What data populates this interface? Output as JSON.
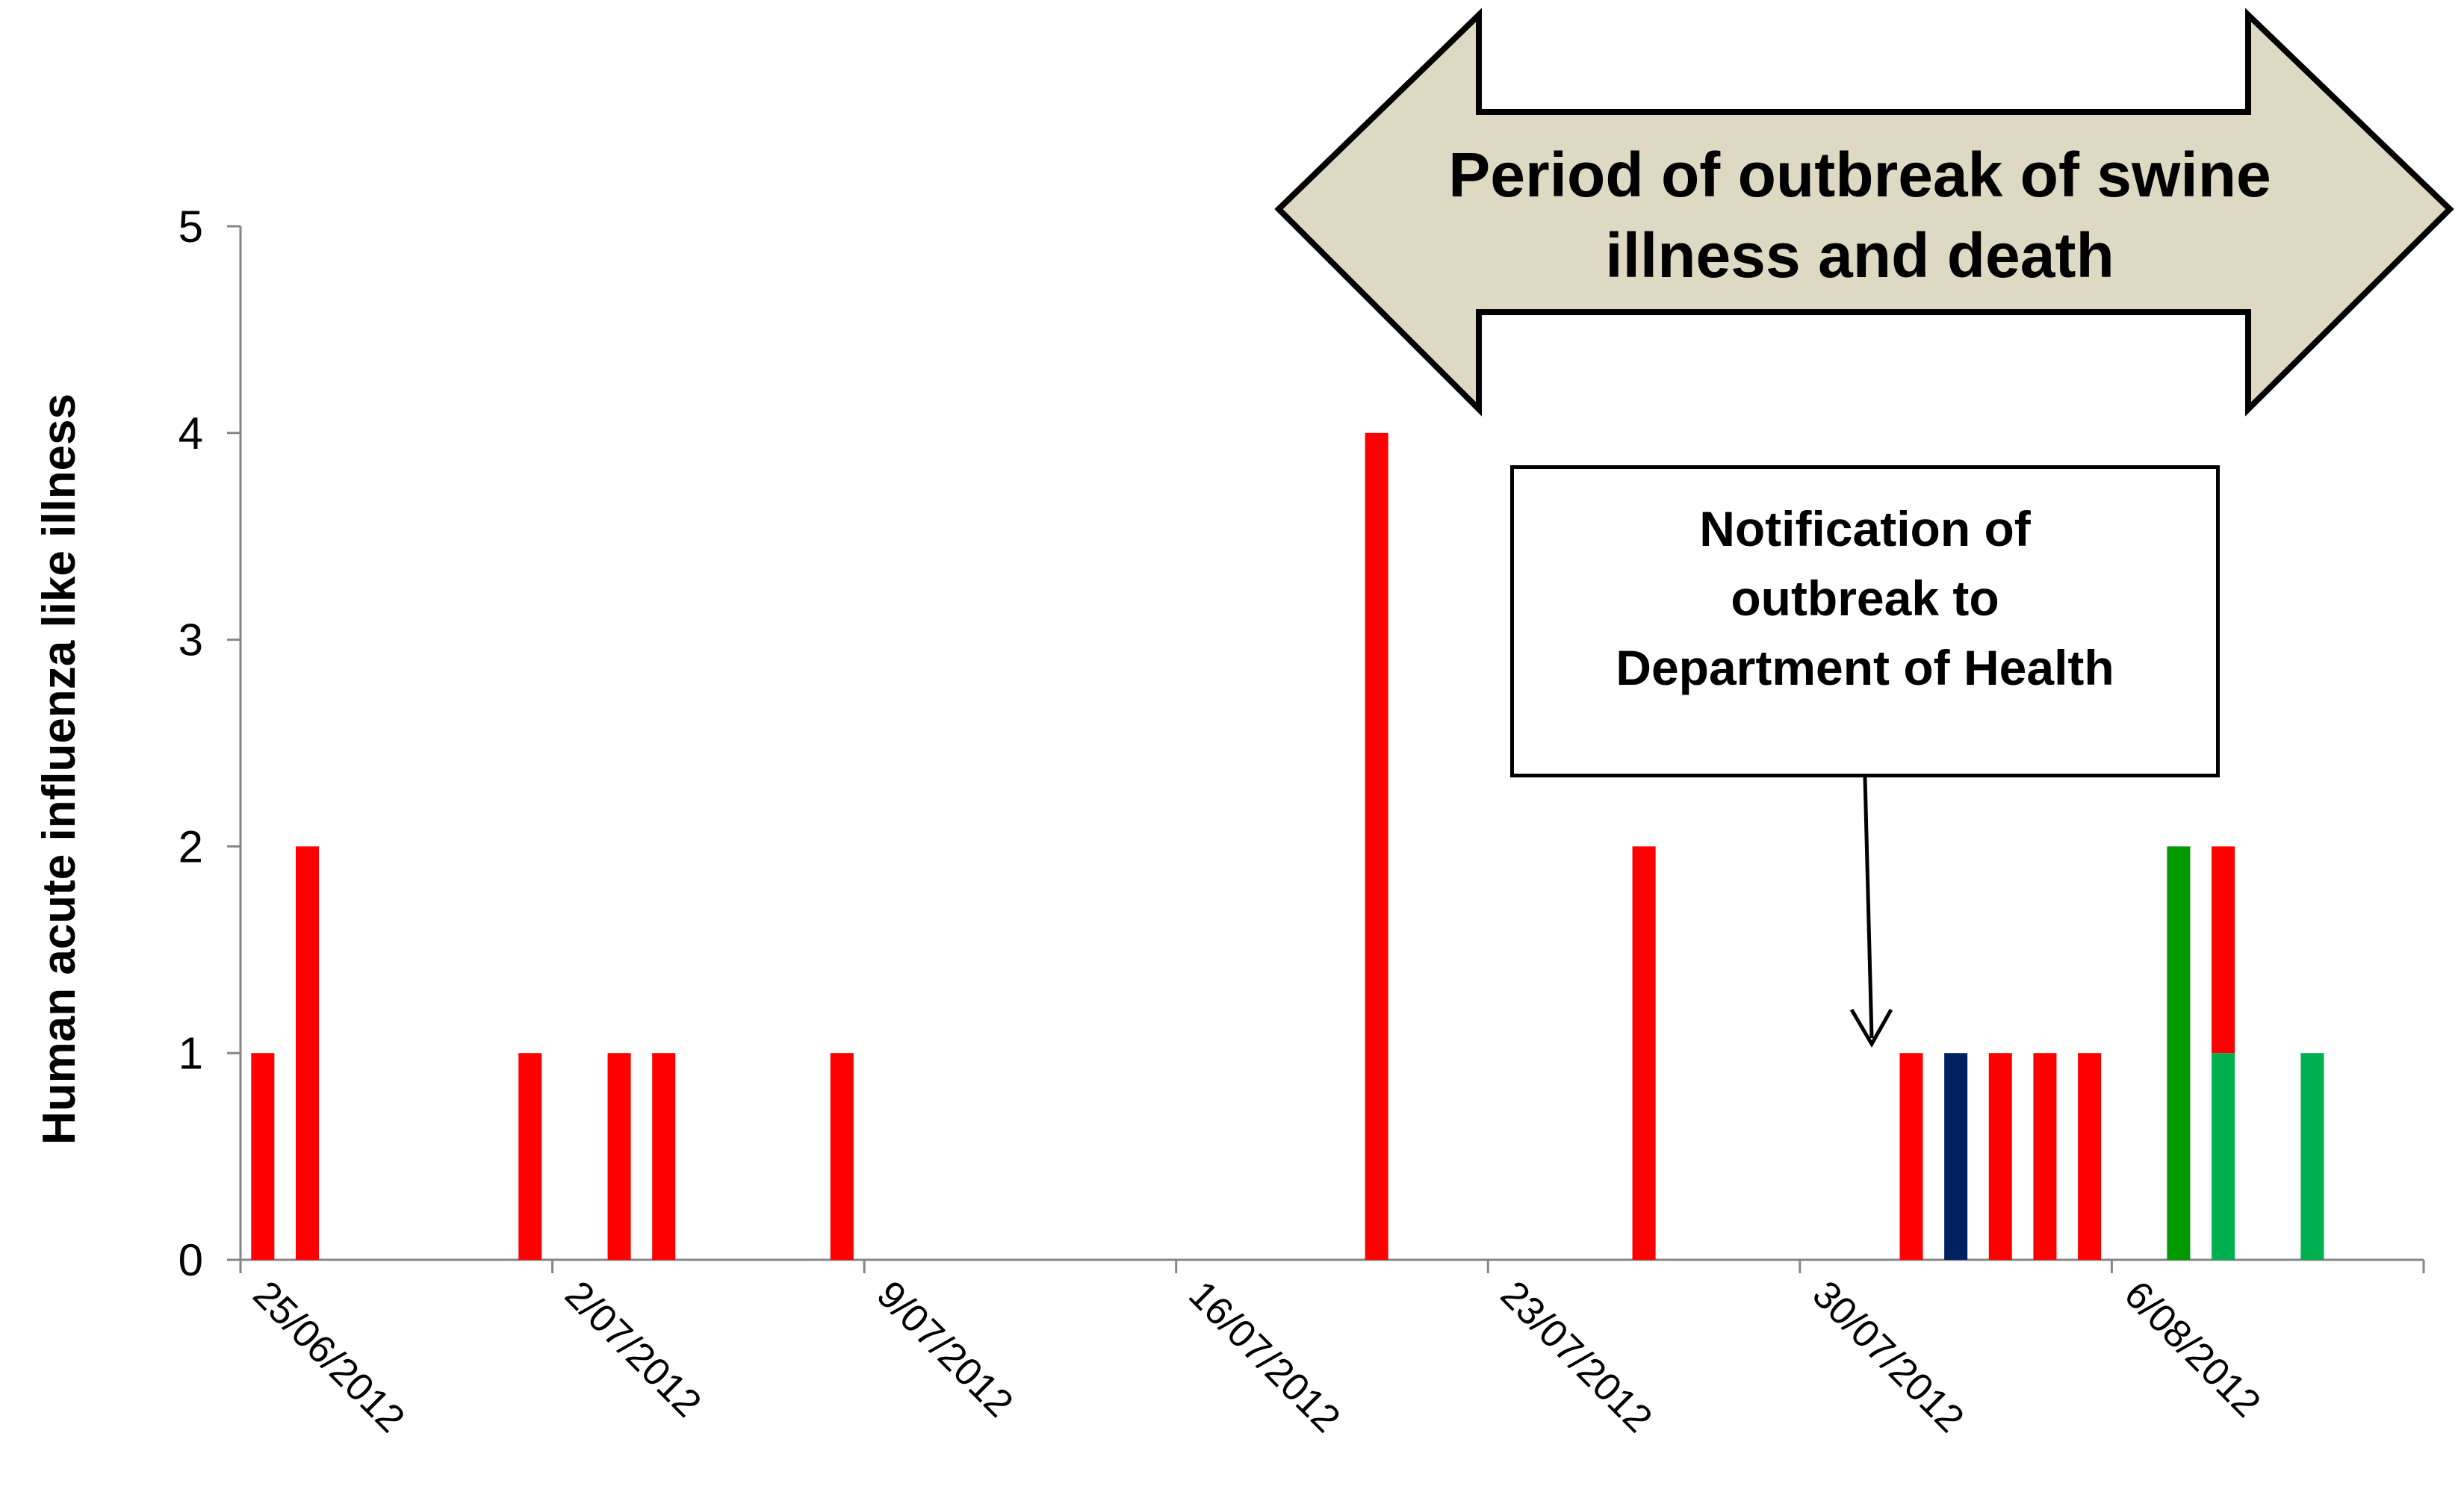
{
  "chart_data": {
    "type": "bar",
    "title": "",
    "xlabel": "",
    "ylabel": "Human acute influenza like  illness",
    "ylim": [
      0,
      5
    ],
    "y_ticks": [
      "0",
      "1",
      "2",
      "3",
      "4",
      "5"
    ],
    "x_tick_labels": [
      "25/06/2012",
      "2/07/2012",
      "9/07/2012",
      "16/07/2012",
      "23/07/2012",
      "30/07/2012",
      "6/08/2012"
    ],
    "x_start_date": "2012-06-25",
    "x_end_day": 49,
    "colors": {
      "red": "#ff0000",
      "navy": "#002060",
      "green": "#009900",
      "light_green": "#00b050"
    },
    "bars": [
      {
        "day": 0.5,
        "segments": [
          {
            "value": 1,
            "color": "red"
          }
        ]
      },
      {
        "day": 1.5,
        "segments": [
          {
            "value": 2,
            "color": "red"
          }
        ]
      },
      {
        "day": 6.5,
        "segments": [
          {
            "value": 1,
            "color": "red"
          }
        ]
      },
      {
        "day": 8.5,
        "segments": [
          {
            "value": 1,
            "color": "red"
          }
        ]
      },
      {
        "day": 9.5,
        "segments": [
          {
            "value": 1,
            "color": "red"
          }
        ]
      },
      {
        "day": 13.5,
        "segments": [
          {
            "value": 1,
            "color": "red"
          }
        ]
      },
      {
        "day": 25.5,
        "segments": [
          {
            "value": 4,
            "color": "red"
          }
        ]
      },
      {
        "day": 31.5,
        "segments": [
          {
            "value": 2,
            "color": "red"
          }
        ]
      },
      {
        "day": 37.5,
        "segments": [
          {
            "value": 1,
            "color": "red"
          }
        ]
      },
      {
        "day": 38.5,
        "segments": [
          {
            "value": 1,
            "color": "navy"
          }
        ]
      },
      {
        "day": 39.5,
        "segments": [
          {
            "value": 1,
            "color": "red"
          }
        ]
      },
      {
        "day": 40.5,
        "segments": [
          {
            "value": 1,
            "color": "red"
          }
        ]
      },
      {
        "day": 41.5,
        "segments": [
          {
            "value": 1,
            "color": "red"
          }
        ]
      },
      {
        "day": 43.5,
        "segments": [
          {
            "value": 2,
            "color": "green"
          }
        ]
      },
      {
        "day": 44.5,
        "segments": [
          {
            "value": 1,
            "color": "light_green"
          },
          {
            "value": 1,
            "color": "red"
          }
        ]
      },
      {
        "day": 46.5,
        "segments": [
          {
            "value": 1,
            "color": "light_green"
          }
        ]
      }
    ],
    "annotations": {
      "outbreak_period": {
        "lines": [
          "Period of outbreak of swine",
          "illness and death"
        ],
        "fill": "#ddd9c3"
      },
      "notification": {
        "lines": [
          "Notification of",
          "outbreak to",
          "Department of Health"
        ],
        "arrow_day": 36.8,
        "arrow_value": 1.05
      }
    }
  }
}
